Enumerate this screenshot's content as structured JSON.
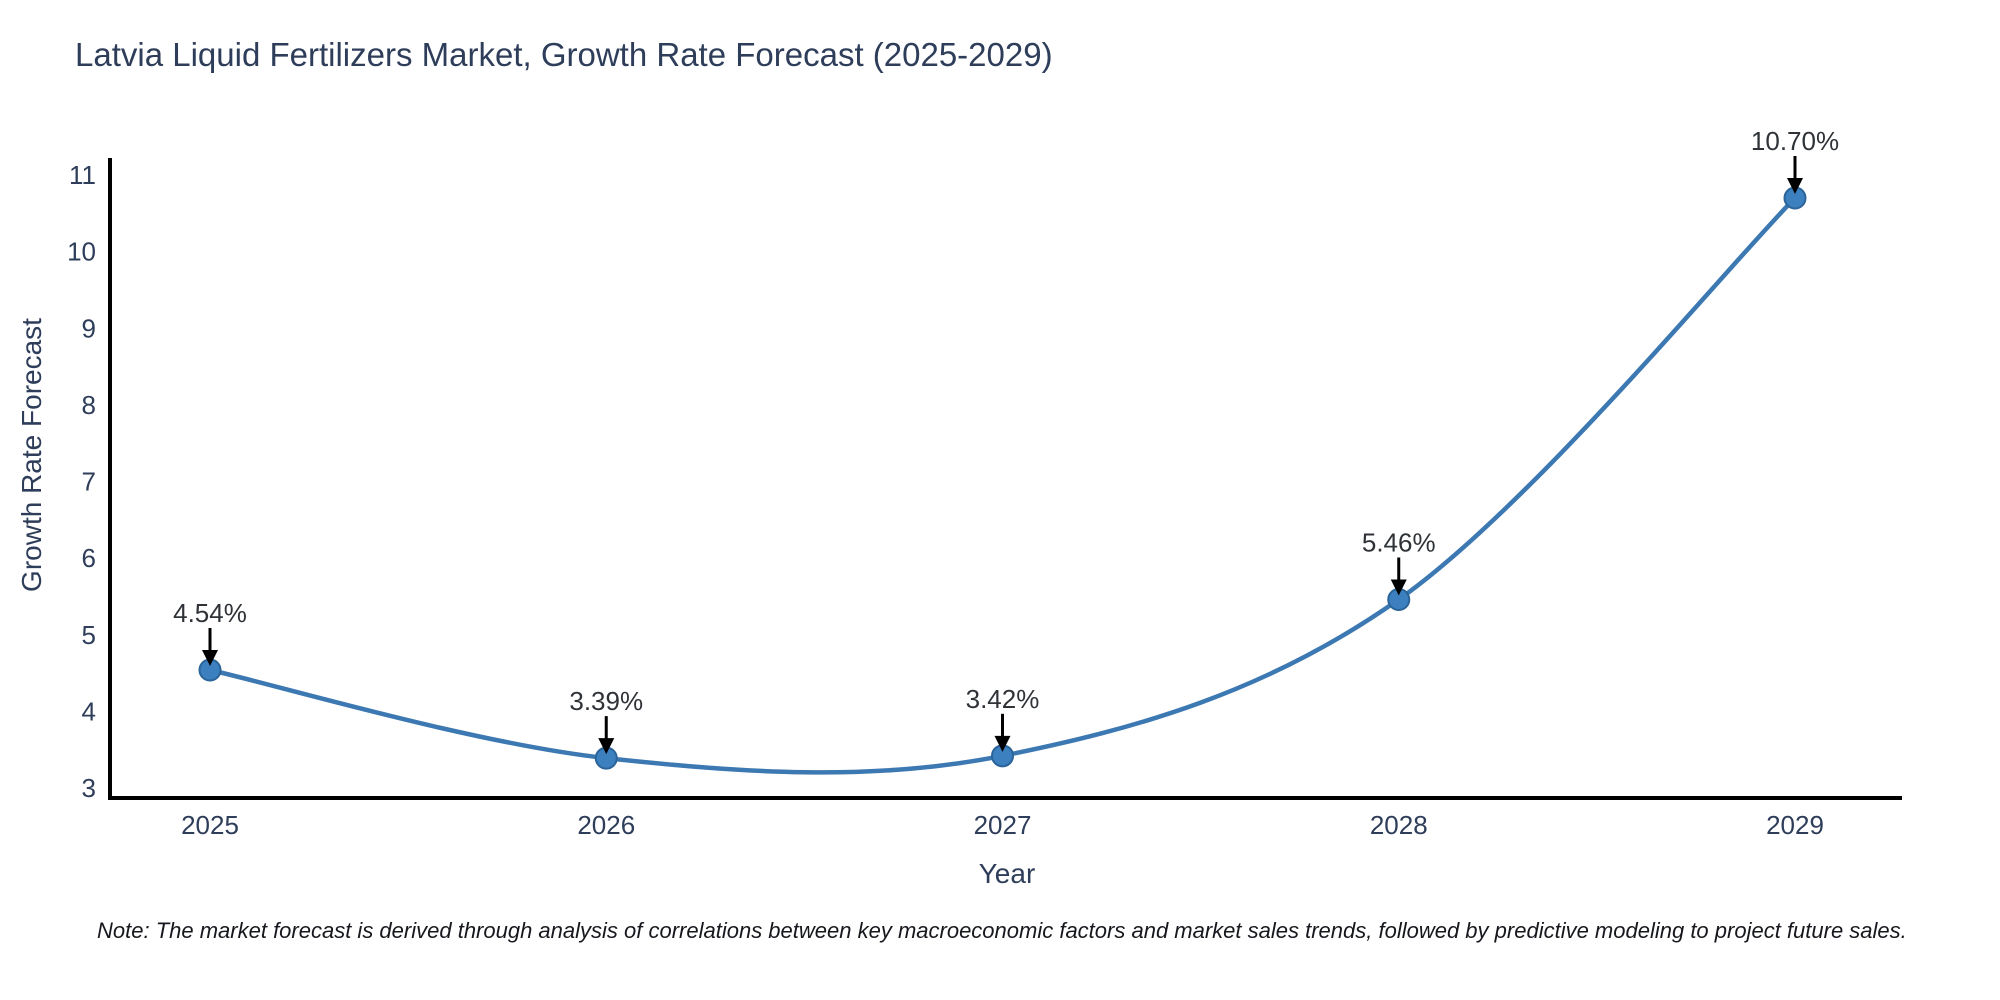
{
  "chart_data": {
    "type": "line",
    "title": "Latvia Liquid Fertilizers Market, Growth Rate Forecast (2025-2029)",
    "xlabel": "Year",
    "ylabel": "Growth Rate Forecast",
    "categories": [
      "2025",
      "2026",
      "2027",
      "2028",
      "2029"
    ],
    "values": [
      4.54,
      3.39,
      3.42,
      5.46,
      10.7
    ],
    "point_labels": [
      "4.54%",
      "3.39%",
      "3.42%",
      "5.46%",
      "10.70%"
    ],
    "ylim": [
      3,
      11
    ],
    "yticks": [
      3,
      4,
      5,
      6,
      7,
      8,
      9,
      10,
      11
    ],
    "grid": false,
    "legend": "none",
    "line_smoothing": "spline",
    "annotation_style": "value label with downward black arrow to marker",
    "colors": {
      "line": "#3c78b2",
      "marker_fill": "#3c80c0",
      "marker_edge": "#2b6499",
      "axis_spine": "#000000",
      "chart_text": "#2e3d59",
      "annotation_text": "#2f3338",
      "arrow": "#000000",
      "background": "#ffffff"
    }
  },
  "footnote": "Note: The market forecast is derived through analysis of correlations between key macroeconomic factors and market sales trends, followed by predictive modeling to project future sales."
}
